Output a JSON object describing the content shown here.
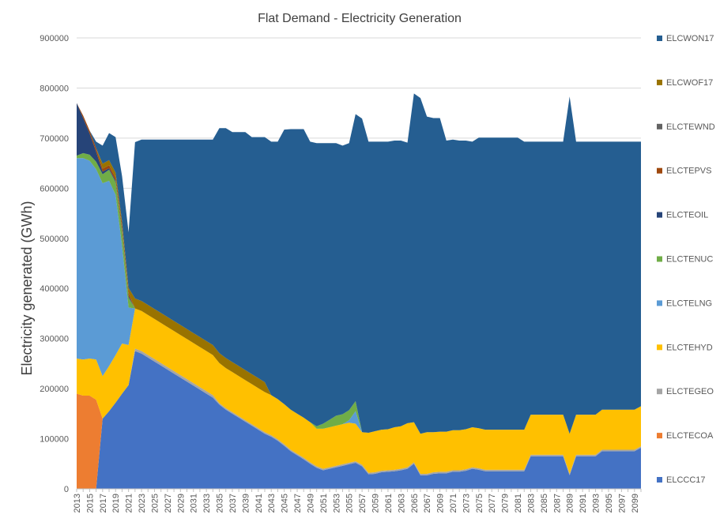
{
  "chart_data": {
    "type": "area",
    "stacked": true,
    "title": "Flat Demand - Electricity Generation",
    "xlabel": "",
    "ylabel": "Electricity generated (GWh)",
    "ylim": [
      0,
      900000
    ],
    "yticks": [
      0,
      100000,
      200000,
      300000,
      400000,
      500000,
      600000,
      700000,
      800000,
      900000
    ],
    "grid": "horizontal",
    "legend_position": "right",
    "x": [
      2013,
      2014,
      2015,
      2016,
      2017,
      2018,
      2019,
      2020,
      2021,
      2022,
      2023,
      2024,
      2025,
      2026,
      2027,
      2028,
      2029,
      2030,
      2031,
      2032,
      2033,
      2034,
      2035,
      2036,
      2037,
      2038,
      2039,
      2040,
      2041,
      2042,
      2043,
      2044,
      2045,
      2046,
      2047,
      2048,
      2049,
      2050,
      2051,
      2052,
      2053,
      2054,
      2055,
      2056,
      2057,
      2058,
      2059,
      2060,
      2061,
      2062,
      2063,
      2064,
      2065,
      2066,
      2067,
      2068,
      2069,
      2070,
      2071,
      2072,
      2073,
      2074,
      2075,
      2076,
      2077,
      2078,
      2079,
      2080,
      2081,
      2082,
      2083,
      2084,
      2085,
      2086,
      2087,
      2088,
      2089,
      2090,
      2091,
      2092,
      2093,
      2094,
      2095,
      2096,
      2097,
      2098,
      2099,
      2100
    ],
    "xtick_labels": [
      "2013",
      "2015",
      "2017",
      "2019",
      "2021",
      "2023",
      "2025",
      "2027",
      "2029",
      "2031",
      "2033",
      "2035",
      "2037",
      "2039",
      "2041",
      "2043",
      "2045",
      "2047",
      "2049",
      "2051",
      "2053",
      "2055",
      "2057",
      "2059",
      "2061",
      "2063",
      "2065",
      "2067",
      "2069",
      "2071",
      "2073",
      "2075",
      "2077",
      "2079",
      "2081",
      "2083",
      "2085",
      "2087",
      "2089",
      "2091",
      "2093",
      "2095",
      "2097",
      "2099"
    ],
    "series": [
      {
        "name": "ELCCC17",
        "color": "#4472C4",
        "values": [
          0,
          0,
          0,
          0,
          140000,
          155000,
          172000,
          190000,
          207000,
          275000,
          270000,
          262000,
          254000,
          246000,
          238000,
          230000,
          222000,
          214000,
          206000,
          198000,
          190000,
          182000,
          168000,
          158000,
          150000,
          142000,
          134000,
          126000,
          118000,
          110000,
          104000,
          96000,
          86000,
          75000,
          67000,
          59000,
          50000,
          42000,
          37000,
          40000,
          43000,
          46000,
          49000,
          52000,
          45000,
          29000,
          30000,
          33000,
          34000,
          35000,
          37000,
          40000,
          50000,
          27000,
          27000,
          30000,
          31000,
          31000,
          34000,
          34000,
          36000,
          40000,
          38000,
          35000,
          35000,
          35000,
          35000,
          35000,
          35000,
          35000,
          65000,
          65000,
          65000,
          65000,
          65000,
          65000,
          27000,
          65000,
          65000,
          65000,
          65000,
          75000,
          75000,
          75000,
          75000,
          75000,
          75000,
          82000
        ]
      },
      {
        "name": "ELCTECOA",
        "color": "#ED7D31",
        "values": [
          190000,
          186000,
          186000,
          178000,
          0,
          0,
          0,
          0,
          0,
          0,
          0,
          0,
          0,
          0,
          0,
          0,
          0,
          0,
          0,
          0,
          0,
          0,
          0,
          0,
          0,
          0,
          0,
          0,
          0,
          0,
          0,
          0,
          0,
          0,
          0,
          0,
          0,
          0,
          0,
          0,
          0,
          0,
          0,
          0,
          0,
          0,
          0,
          0,
          0,
          0,
          0,
          0,
          0,
          0,
          0,
          0,
          0,
          0,
          0,
          0,
          0,
          0,
          0,
          0,
          0,
          0,
          0,
          0,
          0,
          0,
          0,
          0,
          0,
          0,
          0,
          0,
          0,
          0,
          0,
          0,
          0,
          0,
          0,
          0,
          0,
          0,
          0,
          0
        ]
      },
      {
        "name": "ELCTEGEO",
        "color": "#A5A5A5",
        "values": [
          0,
          0,
          0,
          0,
          0,
          0,
          0,
          0,
          0,
          5000,
          5000,
          5000,
          5000,
          5000,
          5000,
          5000,
          5000,
          5000,
          5000,
          5000,
          5000,
          5000,
          3000,
          3000,
          3000,
          3000,
          3000,
          3000,
          3000,
          3000,
          3000,
          3000,
          3000,
          3000,
          3000,
          3000,
          3000,
          3000,
          3000,
          3000,
          3000,
          3000,
          3000,
          3000,
          3000,
          3000,
          3000,
          3000,
          3000,
          3000,
          3000,
          3000,
          3000,
          3000,
          3000,
          3000,
          3000,
          3000,
          3000,
          3000,
          3000,
          3000,
          3000,
          3000,
          3000,
          3000,
          3000,
          3000,
          3000,
          3000,
          3000,
          3000,
          3000,
          3000,
          3000,
          3000,
          3000,
          3000,
          3000,
          3000,
          3000,
          3000,
          3000,
          3000,
          3000,
          3000,
          3000,
          3000
        ]
      },
      {
        "name": "ELCTEHYD",
        "color": "#FFC000",
        "values": [
          70000,
          72000,
          74000,
          80000,
          85000,
          90000,
          95000,
          100000,
          80000,
          80000,
          80000,
          80000,
          80000,
          80000,
          80000,
          80000,
          80000,
          80000,
          80000,
          80000,
          80000,
          80000,
          80000,
          80000,
          80000,
          80000,
          80000,
          80000,
          80000,
          80000,
          80000,
          80000,
          80000,
          80000,
          80000,
          80000,
          80000,
          75000,
          80000,
          80000,
          80000,
          80000,
          80000,
          75000,
          65000,
          80000,
          82000,
          82000,
          82000,
          85000,
          85000,
          88000,
          80000,
          80000,
          83000,
          80000,
          80000,
          80000,
          80000,
          80000,
          80000,
          80000,
          80000,
          80000,
          80000,
          80000,
          80000,
          80000,
          80000,
          80000,
          80000,
          80000,
          80000,
          80000,
          80000,
          80000,
          80000,
          80000,
          80000,
          80000,
          80000,
          80000,
          80000,
          80000,
          80000,
          80000,
          80000,
          80000
        ]
      },
      {
        "name": "ELCTELNG",
        "color": "#5B9BD5",
        "values": [
          400000,
          402000,
          395000,
          380000,
          385000,
          370000,
          320000,
          195000,
          75000,
          0,
          0,
          0,
          0,
          0,
          0,
          0,
          0,
          0,
          0,
          0,
          0,
          0,
          0,
          0,
          0,
          0,
          0,
          0,
          0,
          0,
          0,
          0,
          0,
          0,
          0,
          0,
          0,
          0,
          0,
          0,
          0,
          0,
          5000,
          25000,
          0,
          0,
          0,
          0,
          0,
          0,
          0,
          0,
          0,
          0,
          0,
          0,
          0,
          0,
          0,
          0,
          0,
          0,
          0,
          0,
          0,
          0,
          0,
          0,
          0,
          0,
          0,
          0,
          0,
          0,
          0,
          0,
          0,
          0,
          0,
          0,
          0,
          0,
          0,
          0,
          0,
          0,
          0,
          0
        ]
      },
      {
        "name": "ELCTENUC",
        "color": "#70AD47",
        "values": [
          5000,
          10000,
          12000,
          15000,
          18000,
          22000,
          25000,
          28000,
          20000,
          0,
          0,
          0,
          0,
          0,
          0,
          0,
          0,
          0,
          0,
          0,
          0,
          0,
          0,
          0,
          0,
          0,
          0,
          0,
          0,
          0,
          0,
          0,
          0,
          0,
          0,
          0,
          0,
          5000,
          10000,
          15000,
          20000,
          20000,
          20000,
          20000,
          0,
          0,
          0,
          0,
          0,
          0,
          0,
          0,
          0,
          0,
          0,
          0,
          0,
          0,
          0,
          0,
          0,
          0,
          0,
          0,
          0,
          0,
          0,
          0,
          0,
          0,
          0,
          0,
          0,
          0,
          0,
          0,
          0,
          0,
          0,
          0,
          0,
          0,
          0,
          0,
          0,
          0,
          0,
          0
        ]
      },
      {
        "name": "ELCTEOIL",
        "color": "#264478",
        "values": [
          105000,
          70000,
          42000,
          20000,
          5000,
          3000,
          3000,
          3000,
          3000,
          0,
          0,
          0,
          0,
          0,
          0,
          0,
          0,
          0,
          0,
          0,
          0,
          0,
          0,
          0,
          0,
          0,
          0,
          0,
          0,
          0,
          0,
          0,
          0,
          0,
          0,
          0,
          0,
          0,
          0,
          0,
          0,
          0,
          0,
          0,
          0,
          0,
          0,
          0,
          0,
          0,
          0,
          0,
          0,
          0,
          0,
          0,
          0,
          0,
          0,
          0,
          0,
          0,
          0,
          0,
          0,
          0,
          0,
          0,
          0,
          0,
          0,
          0,
          0,
          0,
          0,
          0,
          0,
          0,
          0,
          0,
          0,
          0,
          0,
          0,
          0,
          0,
          0,
          0
        ]
      },
      {
        "name": "ELCTEPVS",
        "color": "#9E480E",
        "values": [
          0,
          5000,
          6000,
          7000,
          6000,
          6000,
          6000,
          7000,
          6000,
          0,
          0,
          0,
          0,
          0,
          0,
          0,
          0,
          0,
          0,
          0,
          0,
          0,
          0,
          0,
          0,
          0,
          0,
          0,
          0,
          0,
          0,
          0,
          0,
          0,
          0,
          0,
          0,
          0,
          0,
          0,
          0,
          0,
          0,
          0,
          0,
          0,
          0,
          0,
          0,
          0,
          0,
          0,
          0,
          0,
          0,
          0,
          0,
          0,
          0,
          0,
          0,
          0,
          0,
          0,
          0,
          0,
          0,
          0,
          0,
          0,
          0,
          0,
          0,
          0,
          0,
          0,
          0,
          0,
          0,
          0,
          0,
          0,
          0,
          0,
          0,
          0,
          0,
          0
        ]
      },
      {
        "name": "ELCTEWND",
        "color": "#636363",
        "values": [
          0,
          0,
          0,
          0,
          0,
          0,
          0,
          0,
          0,
          0,
          0,
          0,
          0,
          0,
          0,
          0,
          0,
          0,
          0,
          0,
          0,
          0,
          0,
          0,
          0,
          0,
          0,
          0,
          0,
          0,
          0,
          0,
          0,
          0,
          0,
          0,
          0,
          0,
          0,
          0,
          0,
          0,
          0,
          0,
          0,
          0,
          0,
          0,
          0,
          0,
          0,
          0,
          0,
          0,
          0,
          0,
          0,
          0,
          0,
          0,
          0,
          0,
          0,
          0,
          0,
          0,
          0,
          0,
          0,
          0,
          0,
          0,
          0,
          0,
          0,
          0,
          0,
          0,
          0,
          0,
          0,
          0,
          0,
          0,
          0,
          0,
          0,
          0
        ]
      },
      {
        "name": "ELCWOF17",
        "color": "#997300",
        "values": [
          0,
          0,
          0,
          0,
          10000,
          10000,
          10000,
          10000,
          10000,
          20000,
          20000,
          20000,
          20000,
          20000,
          20000,
          20000,
          20000,
          20000,
          20000,
          20000,
          20000,
          20000,
          20000,
          20000,
          20000,
          20000,
          20000,
          20000,
          20000,
          20000,
          0,
          0,
          0,
          0,
          0,
          0,
          0,
          0,
          0,
          0,
          0,
          0,
          0,
          0,
          0,
          0,
          0,
          0,
          0,
          0,
          0,
          0,
          0,
          0,
          0,
          0,
          0,
          0,
          0,
          0,
          0,
          0,
          0,
          0,
          0,
          0,
          0,
          0,
          0,
          0,
          0,
          0,
          0,
          0,
          0,
          0,
          0,
          0,
          0,
          0,
          0,
          0,
          0,
          0,
          0,
          0,
          0,
          0
        ]
      },
      {
        "name": "ELCWON17",
        "color": "#255E91",
        "values": [
          0,
          0,
          0,
          13000,
          36000,
          54000,
          71000,
          91000,
          111000,
          312000,
          322000,
          330000,
          338000,
          346000,
          354000,
          362000,
          370000,
          378000,
          386000,
          394000,
          402000,
          410000,
          449000,
          459000,
          459000,
          467000,
          475000,
          473000,
          481000,
          489000,
          506000,
          514000,
          548000,
          560000,
          568000,
          576000,
          560000,
          565000,
          560000,
          552000,
          544000,
          536000,
          533000,
          573000,
          626000,
          581000,
          578000,
          575000,
          574000,
          572000,
          570000,
          560000,
          656000,
          670000,
          630000,
          627000,
          626000,
          581000,
          580000,
          578000,
          576000,
          570000,
          580000,
          583000,
          583000,
          583000,
          583000,
          583000,
          583000,
          575000,
          545000,
          545000,
          545000,
          545000,
          545000,
          545000,
          673000,
          545000,
          545000,
          545000,
          545000,
          535000,
          535000,
          535000,
          535000,
          535000,
          535000,
          528000
        ]
      }
    ]
  }
}
